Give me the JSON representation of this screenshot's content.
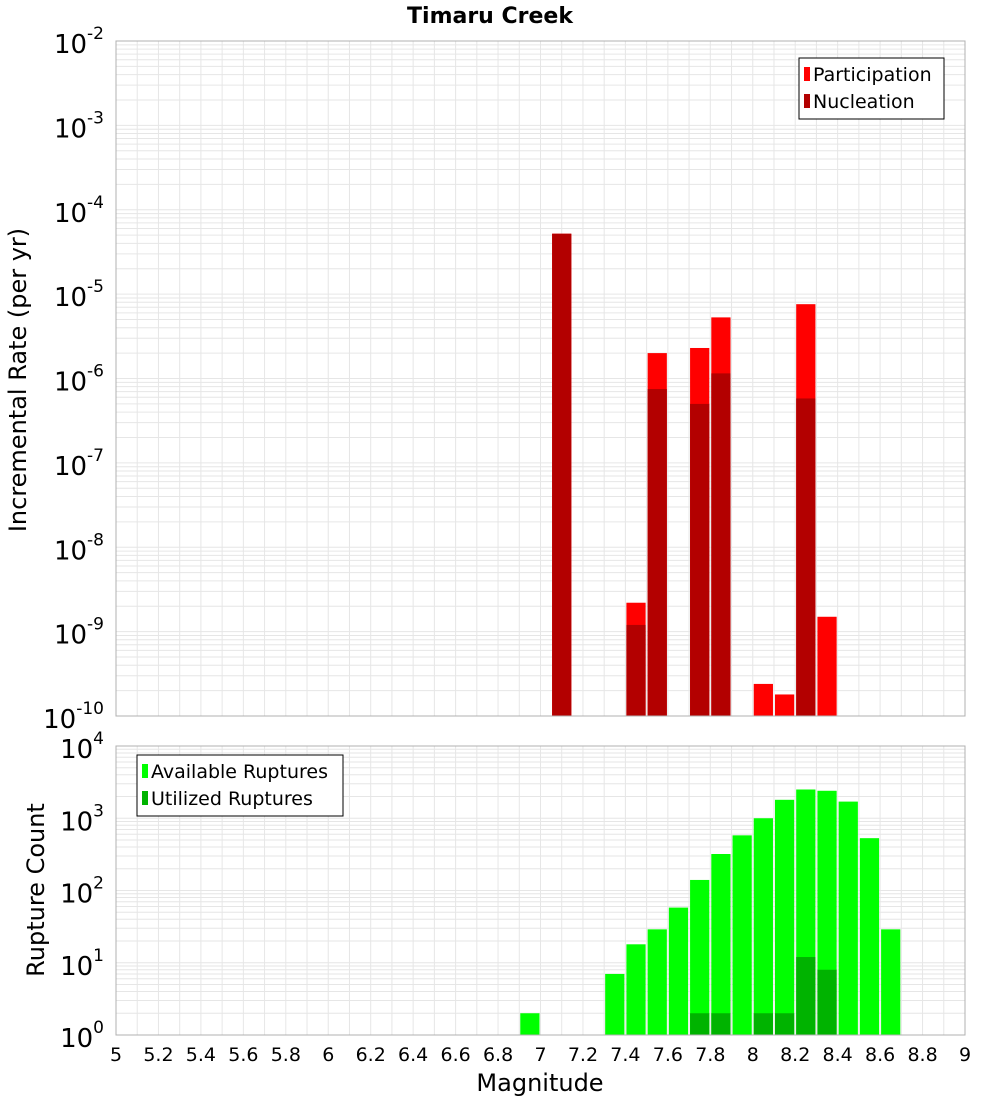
{
  "title": "Timaru Creek",
  "chart_data": [
    {
      "type": "bar",
      "ylabel": "Incremental Rate (per yr)",
      "yscale": "log",
      "ylim_exp": [
        -10,
        -2
      ],
      "xlim": [
        5,
        9
      ],
      "legend_position": "top-right",
      "grid": true,
      "series": [
        {
          "name": "Participation",
          "color": "#ff0000",
          "x": [
            7.1,
            7.45,
            7.55,
            7.75,
            7.85,
            8.05,
            8.15,
            8.25,
            8.35
          ],
          "values": [
            5.2e-05,
            2.2e-09,
            2e-06,
            2.3e-06,
            5.3e-06,
            2.4e-10,
            1.8e-10,
            7.6e-06,
            1.5e-09
          ]
        },
        {
          "name": "Nucleation",
          "color": "#b30000",
          "x": [
            7.1,
            7.45,
            7.55,
            7.75,
            7.85,
            8.25
          ],
          "values": [
            5.2e-05,
            1.2e-09,
            7.5e-07,
            5e-07,
            1.15e-06,
            5.8e-07
          ]
        }
      ]
    },
    {
      "type": "bar",
      "xlabel": "Magnitude",
      "ylabel": "Rupture Count",
      "yscale": "log",
      "ylim_exp": [
        0,
        4
      ],
      "xlim": [
        5,
        9
      ],
      "legend_position": "top-left",
      "grid": true,
      "series": [
        {
          "name": "Available Ruptures",
          "color": "#00ff00",
          "x": [
            6.95,
            7.15,
            7.25,
            7.35,
            7.45,
            7.55,
            7.65,
            7.75,
            7.85,
            7.95,
            8.05,
            8.15,
            8.25,
            8.35,
            8.45,
            8.55,
            8.65
          ],
          "values": [
            2,
            1,
            1,
            7,
            18,
            29,
            58,
            140,
            320,
            580,
            1000,
            1800,
            2500,
            2400,
            1700,
            530,
            29
          ]
        },
        {
          "name": "Utilized Ruptures",
          "color": "#00b300",
          "x": [
            7.15,
            7.45,
            7.55,
            7.65,
            7.75,
            7.85,
            8.05,
            8.15,
            8.25,
            8.35
          ],
          "values": [
            1,
            1,
            1,
            1,
            2,
            2,
            2,
            2,
            12,
            8
          ]
        }
      ]
    }
  ],
  "x_ticks": [
    "5",
    "5.2",
    "5.4",
    "5.6",
    "5.8",
    "6",
    "6.2",
    "6.4",
    "6.6",
    "6.8",
    "7",
    "7.2",
    "7.4",
    "7.6",
    "7.8",
    "8",
    "8.2",
    "8.4",
    "8.6",
    "8.8",
    "9"
  ]
}
